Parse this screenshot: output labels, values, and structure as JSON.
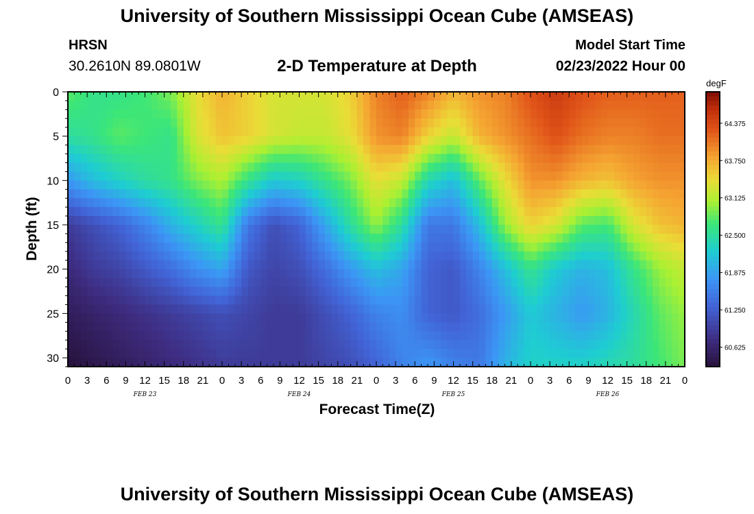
{
  "header": {
    "title": "University of Southern Mississippi Ocean Cube (AMSEAS)",
    "station": "HRSN",
    "coords": "30.2610N  89.0801W",
    "subtitle": "2-D Temperature at Depth",
    "start_label": "Model Start Time",
    "start_value": "02/23/2022 Hour 00"
  },
  "footer": {
    "title": "University of Southern Mississippi Ocean Cube (AMSEAS)"
  },
  "chart_data": {
    "type": "heatmap",
    "title": "2-D Temperature at Depth",
    "xlabel": "Forecast Time(Z)",
    "ylabel": "Depth (ft)",
    "x_ticks": [
      "0",
      "3",
      "6",
      "9",
      "12",
      "15",
      "18",
      "21",
      "0",
      "3",
      "6",
      "9",
      "12",
      "15",
      "18",
      "21",
      "0",
      "3",
      "6",
      "9",
      "12",
      "15",
      "18",
      "21",
      "0",
      "3",
      "6",
      "9",
      "12",
      "15",
      "18",
      "21",
      "0"
    ],
    "x_range_hours": [
      0,
      96
    ],
    "date_labels": [
      {
        "label": "FEB 23",
        "hour": 12
      },
      {
        "label": "FEB 24",
        "hour": 36
      },
      {
        "label": "FEB 25",
        "hour": 60
      },
      {
        "label": "FEB 26",
        "hour": 84
      }
    ],
    "y_ticks": [
      "0",
      "5",
      "10",
      "15",
      "20",
      "25",
      "30"
    ],
    "y_range_ft": [
      0,
      31
    ],
    "colorbar": {
      "unit": "degF",
      "min": 60.3,
      "max": 64.9,
      "ticks": [
        "64.375",
        "63.750",
        "63.125",
        "62.500",
        "61.875",
        "61.250",
        "60.625"
      ]
    },
    "depths_ft": [
      0,
      5,
      10,
      15,
      20,
      25,
      31
    ],
    "times_hours": [
      0,
      4,
      8,
      12,
      16,
      20,
      24,
      28,
      32,
      36,
      40,
      44,
      48,
      52,
      56,
      60,
      64,
      68,
      72,
      76,
      80,
      84,
      88,
      92,
      96
    ],
    "values_degF": [
      [
        62.8,
        62.6,
        62.6,
        62.7,
        62.9,
        63.4,
        63.7,
        63.5,
        63.3,
        63.3,
        63.3,
        63.5,
        64.0,
        64.2,
        64.0,
        63.7,
        63.9,
        64.0,
        64.3,
        64.5,
        64.3,
        64.2,
        64.2,
        64.2,
        64.2
      ],
      [
        62.5,
        62.6,
        62.8,
        62.7,
        62.6,
        63.3,
        63.6,
        63.5,
        63.3,
        63.2,
        63.2,
        63.4,
        63.9,
        64.0,
        63.5,
        63.2,
        63.7,
        63.9,
        64.1,
        64.3,
        64.1,
        64.0,
        64.0,
        64.1,
        64.1
      ],
      [
        61.8,
        62.1,
        62.3,
        62.5,
        62.6,
        62.9,
        63.1,
        62.6,
        62.2,
        62.3,
        62.6,
        62.9,
        63.4,
        63.2,
        62.4,
        62.1,
        62.8,
        63.4,
        63.9,
        63.9,
        63.7,
        63.6,
        63.8,
        63.9,
        63.9
      ],
      [
        60.9,
        61.1,
        61.3,
        61.6,
        62.0,
        62.3,
        62.6,
        61.5,
        61.1,
        61.3,
        61.9,
        62.5,
        63.0,
        62.5,
        61.5,
        61.5,
        62.1,
        63.0,
        63.5,
        63.3,
        62.8,
        62.7,
        63.3,
        63.6,
        63.7
      ],
      [
        60.7,
        60.9,
        61.0,
        61.2,
        61.4,
        61.7,
        61.9,
        61.2,
        61.0,
        61.1,
        61.4,
        61.8,
        62.1,
        61.9,
        61.3,
        61.2,
        61.6,
        62.1,
        62.6,
        62.2,
        62.0,
        62.1,
        62.6,
        63.0,
        63.2
      ],
      [
        60.5,
        60.6,
        60.7,
        60.8,
        60.9,
        61.0,
        61.1,
        61.0,
        60.9,
        60.9,
        61.1,
        61.3,
        61.6,
        61.7,
        61.3,
        61.2,
        61.4,
        61.8,
        62.2,
        62.0,
        61.8,
        62.0,
        62.4,
        62.8,
        63.0
      ],
      [
        60.3,
        60.4,
        60.5,
        60.6,
        60.7,
        60.8,
        60.9,
        60.9,
        60.9,
        60.9,
        61.0,
        61.1,
        61.3,
        61.6,
        61.8,
        61.6,
        61.5,
        62.0,
        62.3,
        62.3,
        62.3,
        62.4,
        62.5,
        62.7,
        62.9
      ]
    ]
  }
}
